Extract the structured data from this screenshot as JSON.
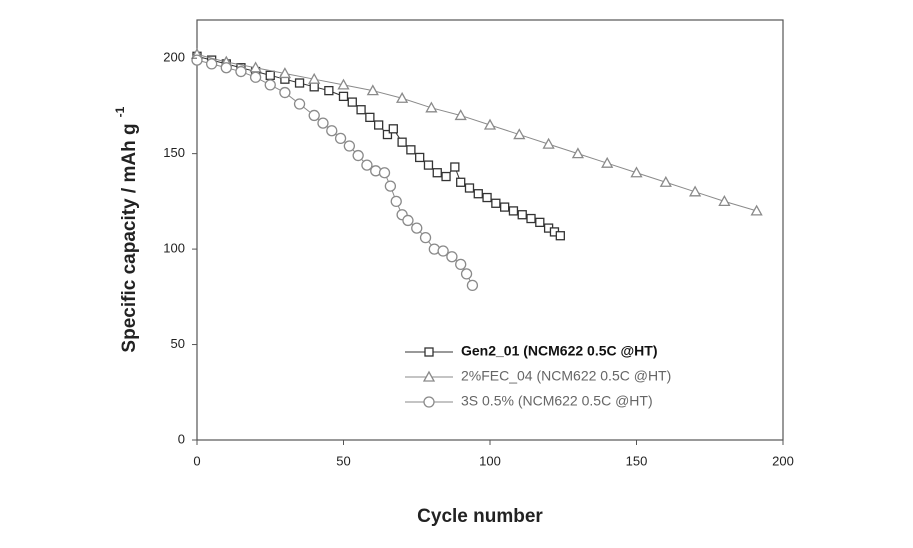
{
  "chart_data": {
    "type": "scatter",
    "x_label": "Cycle number",
    "y_label": "Specific capacity / mAh g",
    "y_label_superscript": "-1",
    "xlim": [
      0,
      200
    ],
    "ylim": [
      0,
      220
    ],
    "xticks": [
      0,
      50,
      100,
      150,
      200
    ],
    "yticks": [
      0,
      50,
      100,
      150,
      200
    ],
    "series": [
      {
        "name": "Gen2_01 (NCM622 0.5C @HT)",
        "color": "#333333",
        "marker": "square",
        "x": [
          0,
          5,
          10,
          15,
          20,
          25,
          30,
          35,
          40,
          45,
          50,
          53,
          56,
          59,
          62,
          65,
          67,
          70,
          73,
          76,
          79,
          82,
          85,
          88,
          90,
          93,
          96,
          99,
          102,
          105,
          108,
          111,
          114,
          117,
          120,
          122,
          124
        ],
        "values": [
          201,
          199,
          197,
          195,
          193,
          191,
          189,
          187,
          185,
          183,
          180,
          177,
          173,
          169,
          165,
          160,
          163,
          156,
          152,
          148,
          144,
          140,
          138,
          143,
          135,
          132,
          129,
          127,
          124,
          122,
          120,
          118,
          116,
          114,
          111,
          109,
          107
        ]
      },
      {
        "name": "2%FEC_04 (NCM622 0.5C @HT)",
        "color": "#8a8a8a",
        "marker": "triangle",
        "x": [
          0,
          10,
          20,
          30,
          40,
          50,
          60,
          70,
          80,
          90,
          100,
          110,
          120,
          130,
          140,
          150,
          160,
          170,
          180,
          191
        ],
        "values": [
          202,
          198,
          195,
          192,
          189,
          186,
          183,
          179,
          174,
          170,
          165,
          160,
          155,
          150,
          145,
          140,
          135,
          130,
          125,
          120
        ]
      },
      {
        "name": "3S 0.5% (NCM622 0.5C @HT)",
        "color": "#8a8a8a",
        "marker": "circle",
        "x": [
          0,
          5,
          10,
          15,
          20,
          25,
          30,
          35,
          40,
          43,
          46,
          49,
          52,
          55,
          58,
          61,
          64,
          66,
          68,
          70,
          72,
          75,
          78,
          81,
          84,
          87,
          90,
          92,
          94
        ],
        "values": [
          199,
          197,
          195,
          193,
          190,
          186,
          182,
          176,
          170,
          166,
          162,
          158,
          154,
          149,
          144,
          141,
          140,
          133,
          125,
          118,
          115,
          111,
          106,
          100,
          99,
          96,
          92,
          87,
          81
        ]
      }
    ]
  }
}
